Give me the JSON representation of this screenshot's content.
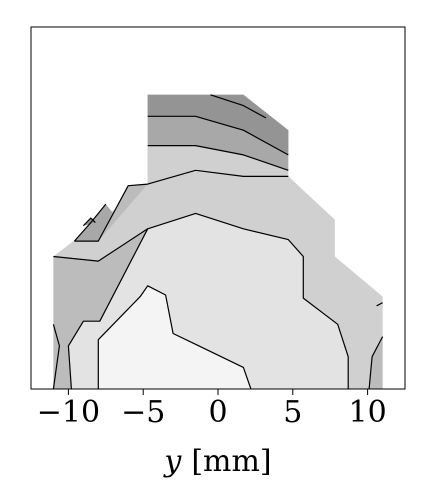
{
  "chart_data": {
    "type": "contour",
    "xlabel_var": "y",
    "xlabel_unit": "[mm]",
    "xlim": [
      -12.5,
      12.5
    ],
    "ylim": [
      0,
      23.5
    ],
    "x_ticks": [
      {
        "value": -10,
        "label": "−10"
      },
      {
        "value": -5,
        "label": "−5"
      },
      {
        "value": 0,
        "label": "0"
      },
      {
        "value": 5,
        "label": "5"
      },
      {
        "value": 10,
        "label": "10"
      }
    ],
    "fill_levels": [
      {
        "level": 1,
        "color": "#f4f4f4"
      },
      {
        "level": 2,
        "color": "#e3e3e3"
      },
      {
        "level": 3,
        "color": "#d0d0d0"
      },
      {
        "level": 4,
        "color": "#bcbcbc"
      },
      {
        "level": 5,
        "color": "#a8a8a8"
      },
      {
        "level": 6,
        "color": "#949494"
      }
    ],
    "domain_outline": [
      [
        -11,
        0
      ],
      [
        -11,
        8.6
      ],
      [
        -4.7,
        13.3
      ],
      [
        -4.7,
        19.1
      ],
      [
        1.7,
        19.1
      ],
      [
        4.7,
        16.8
      ],
      [
        4.7,
        13.8
      ],
      [
        7.8,
        11.0
      ],
      [
        7.8,
        8.6
      ],
      [
        11,
        6.0
      ],
      [
        11,
        0
      ]
    ],
    "regions": [
      {
        "level": 5,
        "points": [
          [
            -4.7,
            15.8
          ],
          [
            -1.5,
            15.8
          ],
          [
            1.7,
            15.2
          ],
          [
            4.7,
            14.2
          ],
          [
            4.7,
            16.8
          ],
          [
            1.7,
            19.1
          ],
          [
            -4.7,
            19.1
          ]
        ]
      },
      {
        "level": 6,
        "points": [
          [
            -4.7,
            17.7
          ],
          [
            -1.5,
            17.7
          ],
          [
            1.7,
            16.8
          ],
          [
            4.7,
            15.2
          ],
          [
            4.7,
            16.8
          ],
          [
            1.7,
            19.1
          ],
          [
            -4.7,
            19.1
          ]
        ]
      },
      {
        "level": 3,
        "points": [
          [
            -11,
            8.6
          ],
          [
            -8.0,
            8.3
          ],
          [
            -4.7,
            10.4
          ],
          [
            -1.5,
            11.4
          ],
          [
            1.7,
            10.4
          ],
          [
            4.7,
            9.7
          ],
          [
            5.7,
            8.6
          ],
          [
            5.7,
            5.9
          ],
          [
            8.0,
            4.2
          ],
          [
            8.7,
            2.1
          ],
          [
            11,
            3.2
          ],
          [
            11,
            6.0
          ],
          [
            7.8,
            8.6
          ],
          [
            7.8,
            11.0
          ],
          [
            4.7,
            13.8
          ],
          [
            4.7,
            14.2
          ],
          [
            1.7,
            15.2
          ],
          [
            -1.5,
            15.8
          ],
          [
            -4.7,
            15.8
          ],
          [
            -4.7,
            13.3
          ]
        ]
      },
      {
        "level": 4,
        "points": [
          [
            -11,
            8.6
          ],
          [
            -11,
            0
          ],
          [
            -9.8,
            0
          ],
          [
            -10.0,
            2.8
          ],
          [
            -9.0,
            4.4
          ],
          [
            -7.9,
            4.4
          ],
          [
            -4.7,
            10.4
          ],
          [
            -8.0,
            8.3
          ]
        ]
      },
      {
        "level": 4,
        "points": [
          [
            -8.0,
            9.6
          ],
          [
            -7.0,
            11.4
          ],
          [
            -6.0,
            13.2
          ],
          [
            -4.7,
            13.3
          ]
        ]
      },
      {
        "level": 5,
        "points": [
          [
            -9.6,
            9.6
          ],
          [
            -8.5,
            10.8
          ],
          [
            -7.5,
            12.0
          ],
          [
            -7.0,
            11.4
          ],
          [
            -8.0,
            9.6
          ]
        ]
      },
      {
        "level": 6,
        "points": [
          [
            -9.0,
            10.6
          ],
          [
            -8.5,
            11.1
          ],
          [
            -8.2,
            10.8
          ]
        ]
      },
      {
        "level": 4,
        "points": [
          [
            10.1,
            0
          ],
          [
            11,
            0
          ],
          [
            11,
            3.4
          ],
          [
            10.3,
            2.1
          ]
        ]
      },
      {
        "level": 2,
        "points": [
          [
            -8.0,
            0
          ],
          [
            -8.0,
            3.2
          ],
          [
            -5.2,
            6.0
          ],
          [
            -4.7,
            6.7
          ],
          [
            -3.5,
            6.1
          ],
          [
            -3.0,
            3.6
          ],
          [
            -1.5,
            2.9
          ],
          [
            1.7,
            1.4
          ],
          [
            2.2,
            0
          ],
          [
            8.7,
            0
          ],
          [
            8.7,
            2.1
          ],
          [
            8.0,
            4.2
          ],
          [
            5.7,
            5.9
          ],
          [
            5.7,
            8.6
          ],
          [
            4.7,
            9.7
          ],
          [
            1.7,
            10.4
          ],
          [
            -1.5,
            11.4
          ],
          [
            -4.7,
            10.4
          ],
          [
            -7.9,
            4.4
          ],
          [
            -9.0,
            4.4
          ],
          [
            -10.0,
            2.8
          ],
          [
            -9.8,
            0
          ]
        ]
      },
      {
        "level": 1,
        "points": [
          [
            -8.0,
            0
          ],
          [
            -8.0,
            3.2
          ],
          [
            -5.2,
            6.0
          ],
          [
            -4.7,
            6.7
          ],
          [
            -3.5,
            6.1
          ],
          [
            -3.0,
            3.6
          ],
          [
            -1.5,
            2.9
          ],
          [
            1.7,
            1.4
          ],
          [
            2.2,
            0
          ]
        ]
      }
    ],
    "contour_lines": [
      [
        [
          -11,
          8.6
        ],
        [
          -8.0,
          8.3
        ],
        [
          -4.7,
          10.4
        ],
        [
          -1.5,
          11.4
        ],
        [
          1.7,
          10.4
        ],
        [
          4.7,
          9.7
        ],
        [
          5.7,
          8.6
        ],
        [
          5.7,
          5.9
        ],
        [
          8.0,
          4.2
        ],
        [
          8.7,
          2.1
        ],
        [
          8.7,
          0
        ]
      ],
      [
        [
          -9.8,
          0
        ],
        [
          -10.0,
          2.8
        ],
        [
          -9.0,
          4.4
        ],
        [
          -7.9,
          4.4
        ],
        [
          -4.7,
          10.4
        ]
      ],
      [
        [
          -8.0,
          0
        ],
        [
          -8.0,
          3.2
        ],
        [
          -5.2,
          6.0
        ],
        [
          -4.7,
          6.7
        ],
        [
          -3.5,
          6.1
        ],
        [
          -3.0,
          3.6
        ],
        [
          -1.5,
          2.9
        ],
        [
          1.7,
          1.4
        ],
        [
          2.2,
          0
        ]
      ],
      [
        [
          -11,
          0
        ],
        [
          -10.6,
          2.8
        ],
        [
          -11,
          4.2
        ]
      ],
      [
        [
          10.1,
          0
        ],
        [
          10.3,
          2.1
        ],
        [
          11,
          3.4
        ]
      ],
      [
        [
          10.6,
          5.4
        ],
        [
          11,
          5.6
        ]
      ],
      [
        [
          -9.6,
          9.6
        ],
        [
          -8.0,
          9.6
        ],
        [
          -7.0,
          11.4
        ],
        [
          -6.0,
          13.2
        ],
        [
          -4.7,
          13.3
        ],
        [
          -1.5,
          14.2
        ],
        [
          1.7,
          13.8
        ],
        [
          4.7,
          13.8
        ]
      ],
      [
        [
          -9.6,
          9.6
        ],
        [
          -8.5,
          10.8
        ],
        [
          -7.5,
          12.0
        ]
      ],
      [
        [
          -9.0,
          10.6
        ],
        [
          -8.5,
          11.1
        ],
        [
          -8.2,
          10.8
        ]
      ],
      [
        [
          -4.7,
          15.8
        ],
        [
          -1.5,
          15.8
        ],
        [
          1.7,
          15.2
        ],
        [
          4.7,
          14.2
        ]
      ],
      [
        [
          -4.7,
          17.7
        ],
        [
          -1.5,
          17.7
        ],
        [
          1.7,
          16.8
        ],
        [
          4.7,
          15.2
        ]
      ],
      [
        [
          -0.5,
          19.1
        ],
        [
          1.7,
          18.4
        ],
        [
          3.2,
          17.6
        ]
      ]
    ]
  }
}
